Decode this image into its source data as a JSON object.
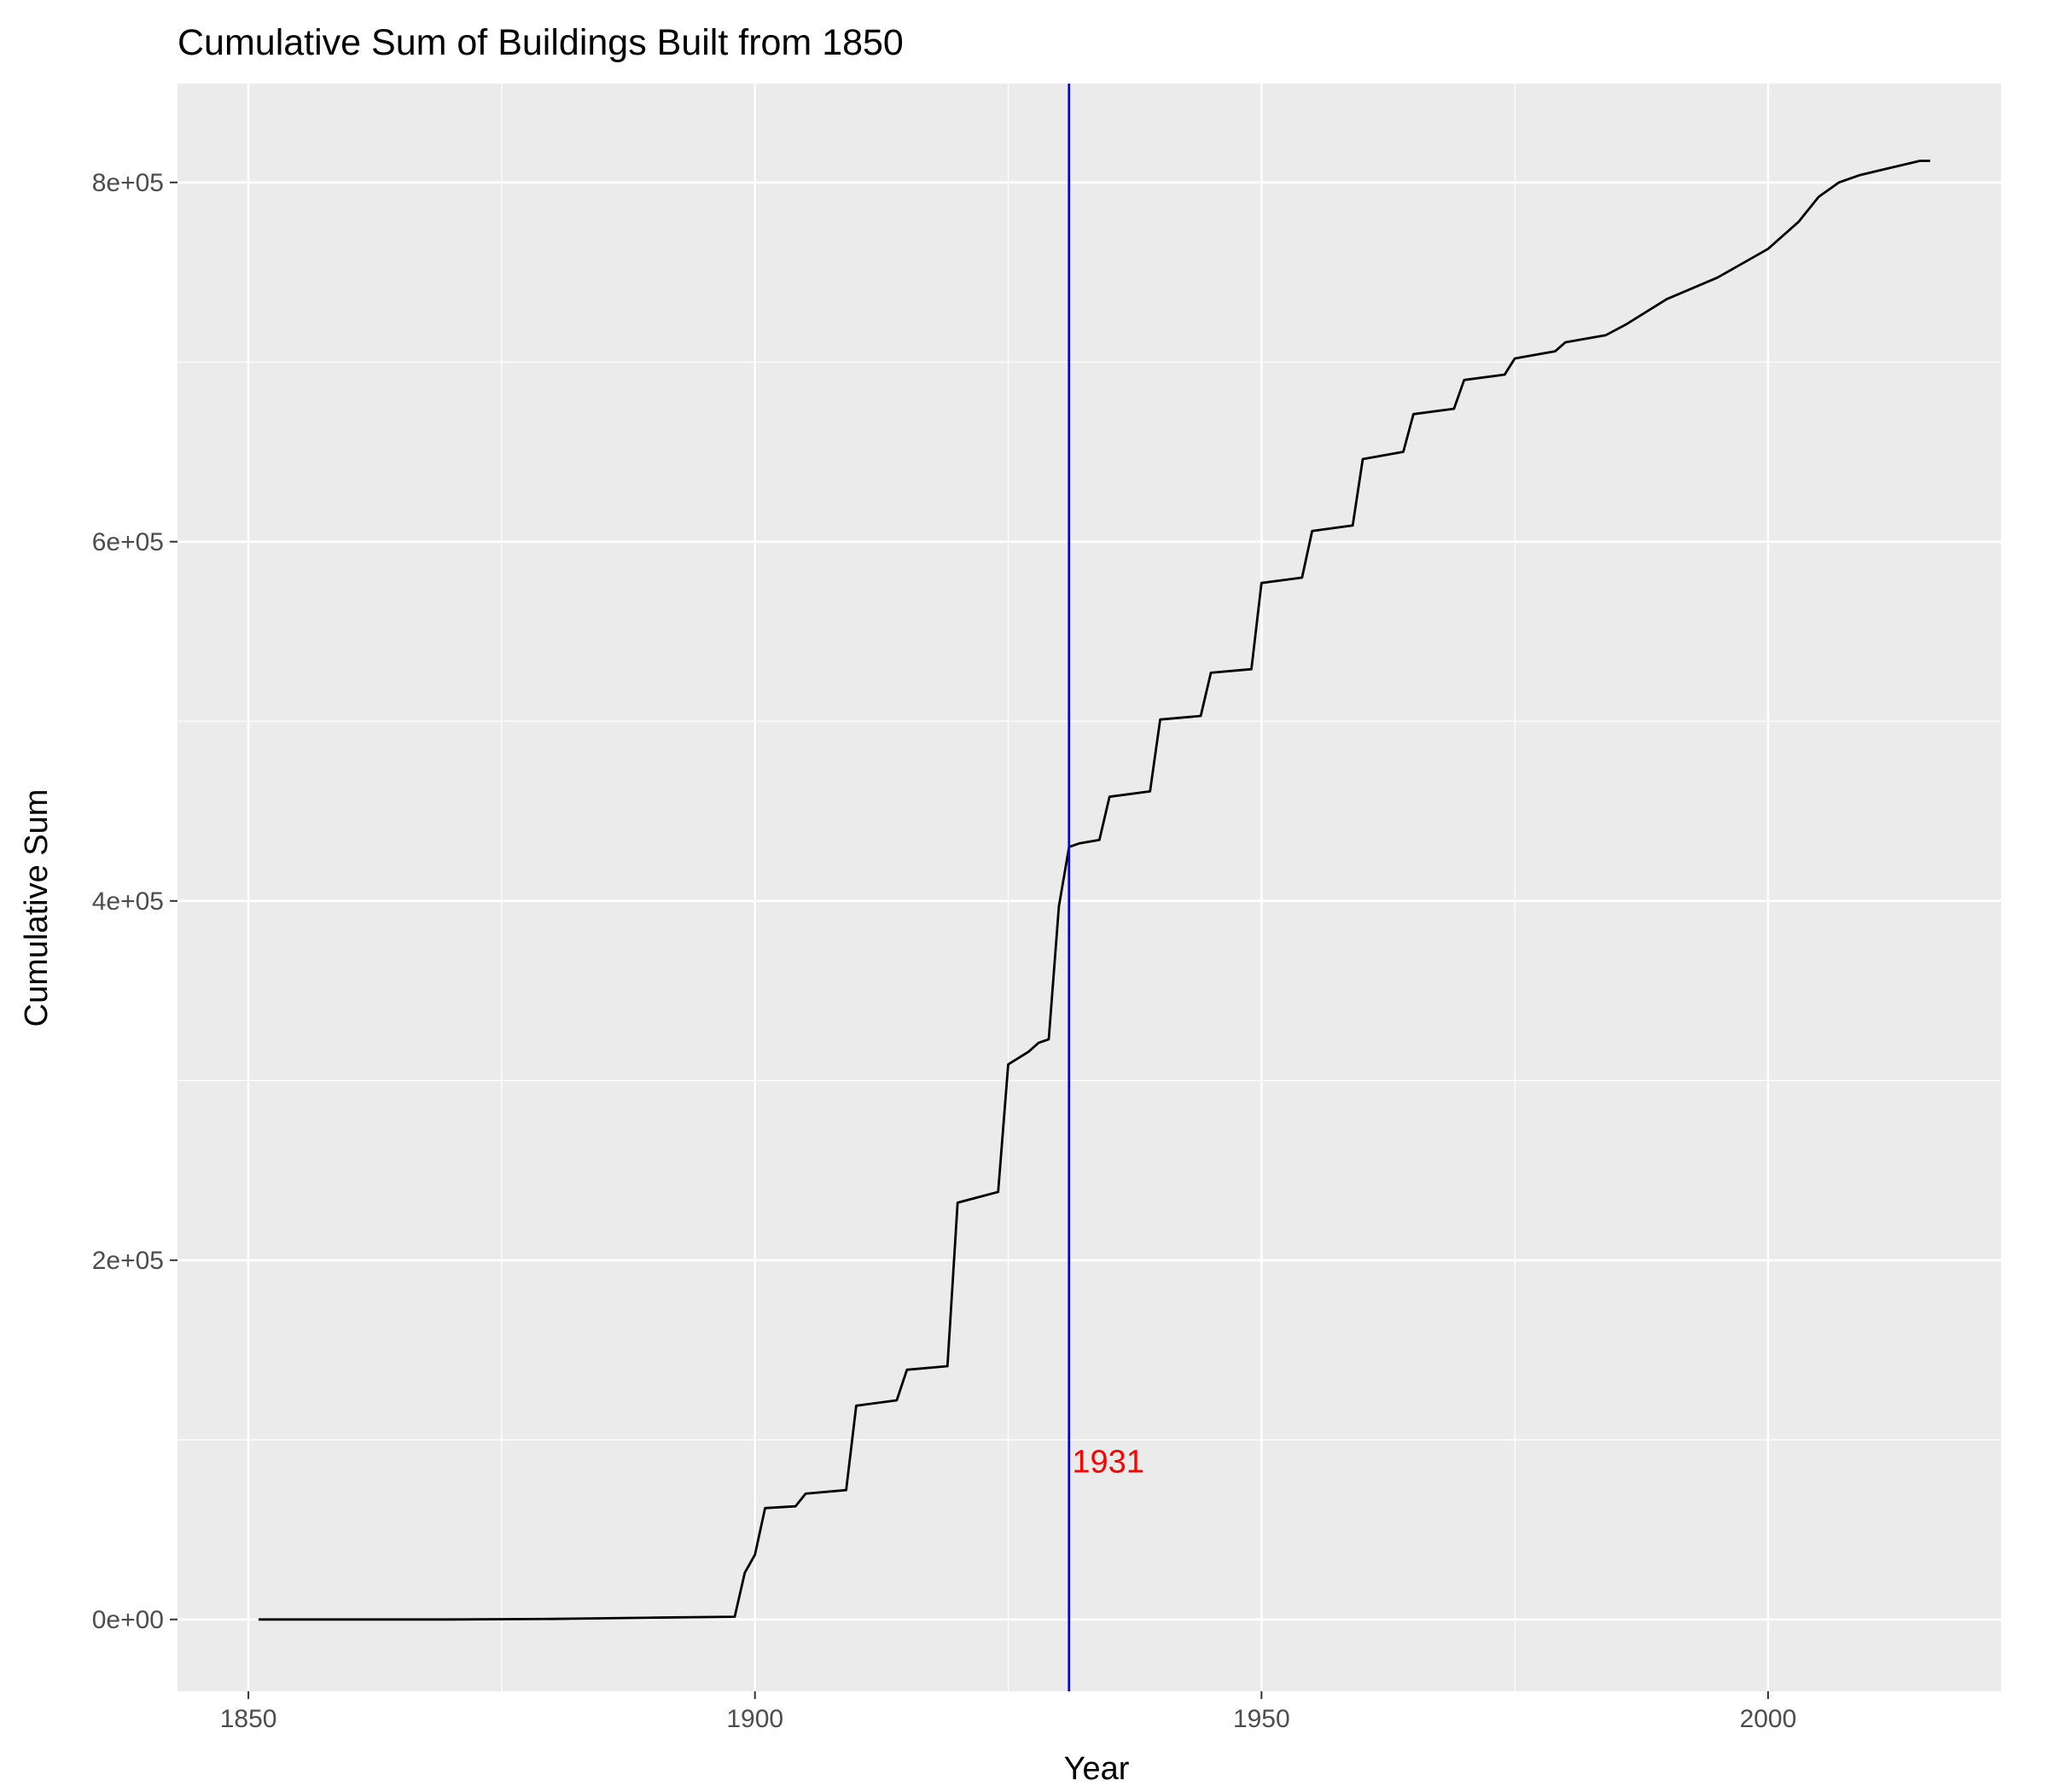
{
  "chart_data": {
    "type": "line",
    "title": "Cumulative Sum of Buildings Built from 1850",
    "xlabel": "Year",
    "ylabel": "Cumulative Sum",
    "xlim": [
      1843,
      2023
    ],
    "ylim": [
      -40000,
      855000
    ],
    "x_ticks": [
      1850,
      1900,
      1950,
      2000
    ],
    "x_tick_labels": [
      "1850",
      "1900",
      "1950",
      "2000"
    ],
    "x_minor_ticks": [
      1875,
      1925,
      1975,
      2025
    ],
    "y_ticks": [
      0,
      200000,
      400000,
      600000,
      800000
    ],
    "y_tick_labels": [
      "0e+00",
      "2e+05",
      "4e+05",
      "6e+05",
      "8e+05"
    ],
    "y_minor_ticks": [
      100000,
      300000,
      500000,
      700000
    ],
    "grid": true,
    "colors": {
      "panel_background": "#ebebeb",
      "grid": "#ffffff",
      "line": "#000000",
      "vline": "#0000ff",
      "annotation": "#ff0000"
    },
    "series": [
      {
        "points": [
          [
            1851,
            0
          ],
          [
            1860,
            0
          ],
          [
            1870,
            0
          ],
          [
            1880,
            300
          ],
          [
            1890,
            1000
          ],
          [
            1898,
            1500
          ],
          [
            1899,
            26000
          ],
          [
            1900,
            36000
          ],
          [
            1901,
            62000
          ],
          [
            1904,
            63000
          ],
          [
            1905,
            70000
          ],
          [
            1909,
            72000
          ],
          [
            1910,
            119000
          ],
          [
            1914,
            122000
          ],
          [
            1915,
            139000
          ],
          [
            1919,
            141000
          ],
          [
            1920,
            232000
          ],
          [
            1924,
            238000
          ],
          [
            1925,
            309000
          ],
          [
            1927,
            316000
          ],
          [
            1928,
            321000
          ],
          [
            1929,
            323000
          ],
          [
            1930,
            397000
          ],
          [
            1931,
            430000
          ],
          [
            1932,
            432000
          ],
          [
            1934,
            434000
          ],
          [
            1935,
            458000
          ],
          [
            1939,
            461000
          ],
          [
            1940,
            501000
          ],
          [
            1944,
            503000
          ],
          [
            1945,
            527000
          ],
          [
            1949,
            529000
          ],
          [
            1950,
            577000
          ],
          [
            1954,
            580000
          ],
          [
            1955,
            606000
          ],
          [
            1959,
            609000
          ],
          [
            1960,
            646000
          ],
          [
            1964,
            650000
          ],
          [
            1965,
            671000
          ],
          [
            1969,
            674000
          ],
          [
            1970,
            690000
          ],
          [
            1974,
            693000
          ],
          [
            1975,
            702000
          ],
          [
            1979,
            706000
          ],
          [
            1980,
            711000
          ],
          [
            1984,
            715000
          ],
          [
            1986,
            721000
          ],
          [
            1990,
            735000
          ],
          [
            1995,
            747000
          ],
          [
            2000,
            763000
          ],
          [
            2003,
            778000
          ],
          [
            2005,
            792000
          ],
          [
            2007,
            800000
          ],
          [
            2009,
            804000
          ],
          [
            2012,
            808000
          ],
          [
            2015,
            812000
          ],
          [
            2016,
            812000
          ]
        ]
      }
    ],
    "vline": {
      "x": 1931
    },
    "annotations": [
      {
        "text": "1931",
        "x": 1931.3,
        "y": 88000,
        "color": "#ff0000"
      }
    ]
  }
}
